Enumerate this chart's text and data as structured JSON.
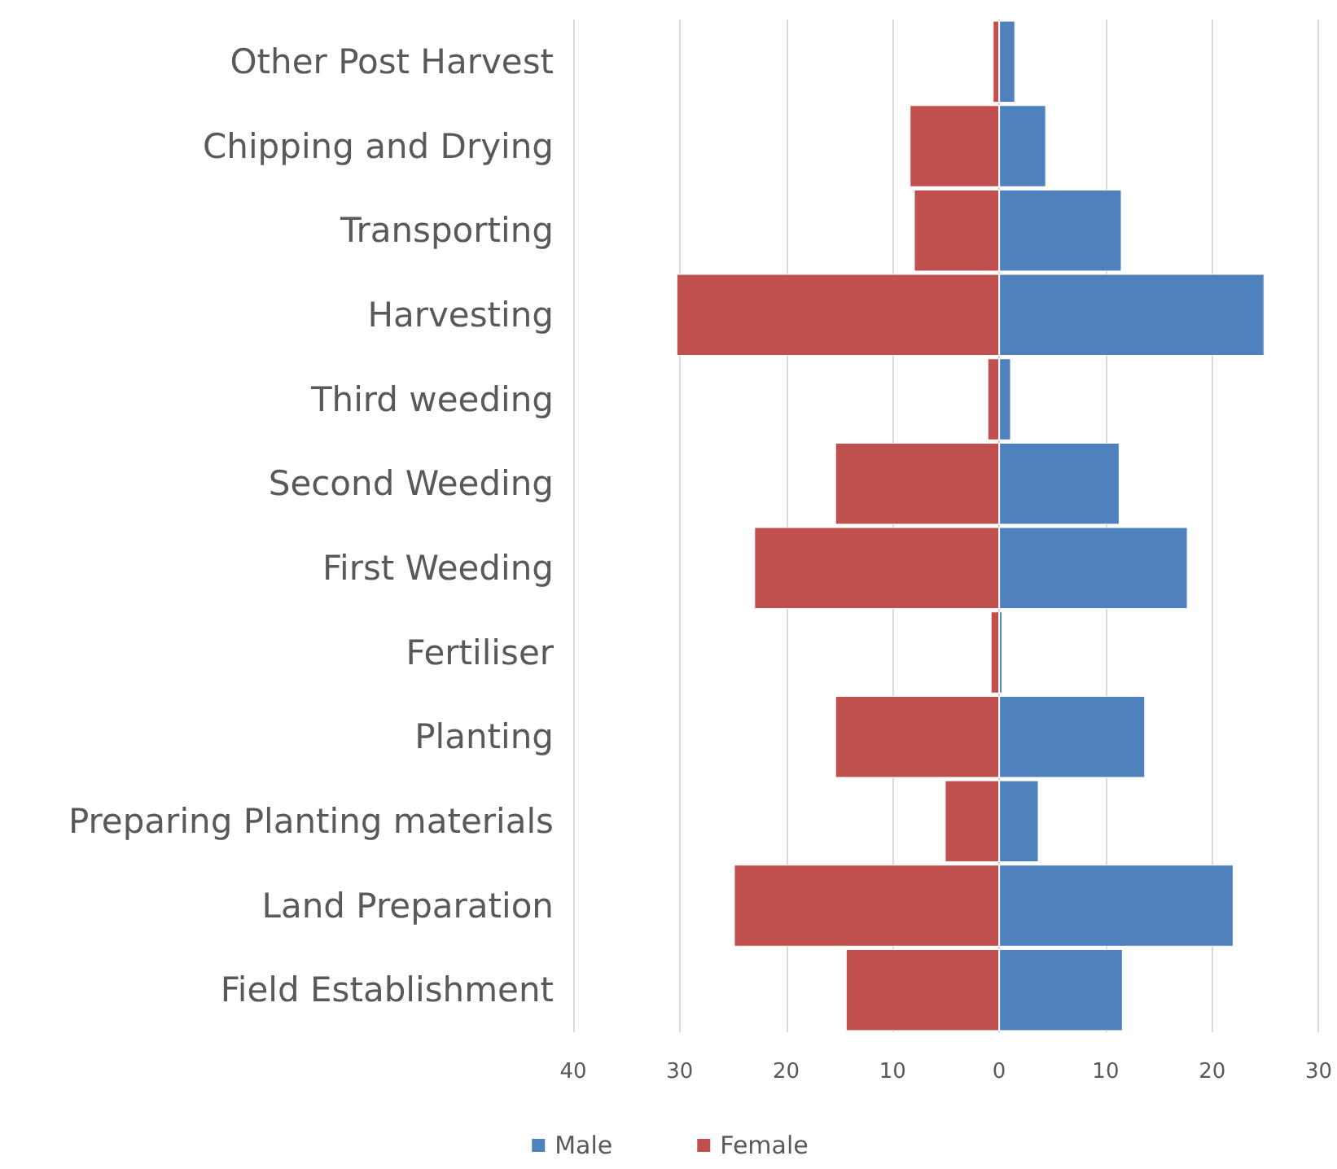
{
  "chart_data": {
    "type": "bar",
    "orientation": "horizontal",
    "stacked": true,
    "categories": [
      "Other Post Harvest",
      "Chipping and Drying",
      "Transporting",
      "Harvesting",
      "Third weeding",
      "Second Weeding",
      "First Weeding",
      "Fertiliser",
      "Planting",
      "Preparing Planting materials",
      "Land Preparation",
      "Field Establishment"
    ],
    "series": [
      {
        "name": "Male",
        "color": "#4f81bd",
        "values": [
          1.5,
          4.4,
          11.5,
          24.9,
          1.1,
          11.3,
          17.7,
          0.3,
          13.7,
          3.7,
          22.0,
          11.6
        ]
      },
      {
        "name": "Female",
        "color": "#c0504d",
        "values": [
          -0.6,
          -8.4,
          -8.0,
          -30.3,
          -1.1,
          -15.4,
          -23.0,
          -0.8,
          -15.4,
          -5.1,
          -24.9,
          -14.4
        ]
      }
    ],
    "xlim": [
      -40,
      30
    ],
    "xticks": [
      {
        "value": -40,
        "label": "40"
      },
      {
        "value": -30,
        "label": "30"
      },
      {
        "value": -20,
        "label": "20"
      },
      {
        "value": -10,
        "label": "10"
      },
      0,
      10,
      20,
      30
    ],
    "grid": "x",
    "legend": "bottom"
  }
}
